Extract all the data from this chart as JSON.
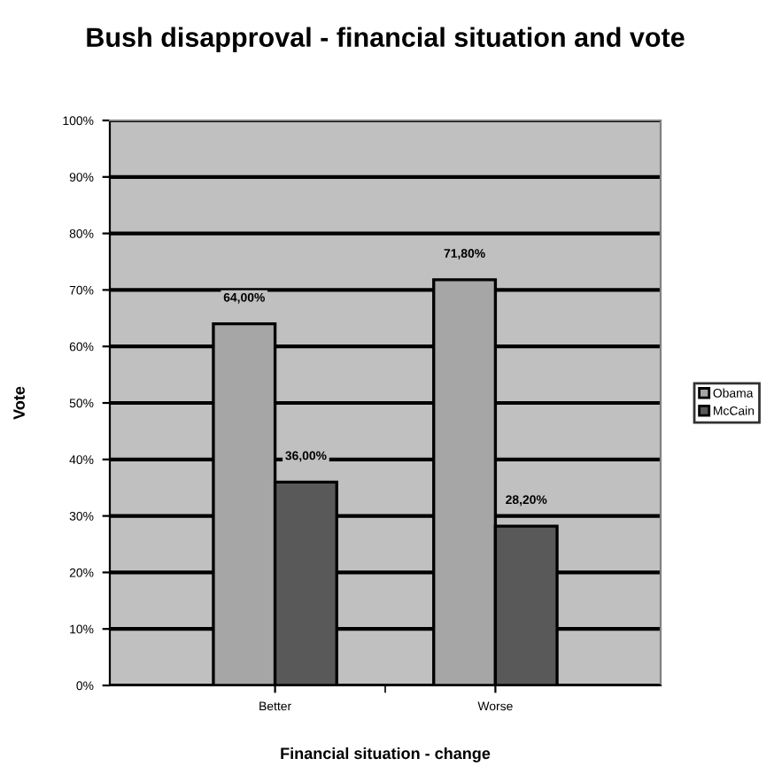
{
  "chart_data": {
    "type": "bar",
    "title": "Bush disapproval - financial situation and vote",
    "xlabel": "Financial situation - change",
    "ylabel": "Vote",
    "categories": [
      "Better",
      "Worse"
    ],
    "series": [
      {
        "name": "Obama",
        "color": "#a6a6a6",
        "values": [
          64.0,
          71.8
        ],
        "value_labels": [
          "64,00%",
          "71,80%"
        ]
      },
      {
        "name": "McCain",
        "color": "#595959",
        "values": [
          36.0,
          28.2
        ],
        "value_labels": [
          "36,00%",
          "28,20%"
        ]
      }
    ],
    "ylim": [
      0,
      100
    ],
    "yticks": [
      {
        "value": 0,
        "label": "0%"
      },
      {
        "value": 10,
        "label": "10%"
      },
      {
        "value": 20,
        "label": "20%"
      },
      {
        "value": 30,
        "label": "30%"
      },
      {
        "value": 40,
        "label": "40%"
      },
      {
        "value": 50,
        "label": "50%"
      },
      {
        "value": 60,
        "label": "60%"
      },
      {
        "value": 70,
        "label": "70%"
      },
      {
        "value": 80,
        "label": "80%"
      },
      {
        "value": 90,
        "label": "90%"
      },
      {
        "value": 100,
        "label": "100%"
      }
    ],
    "grid": "y",
    "legend": "right"
  }
}
